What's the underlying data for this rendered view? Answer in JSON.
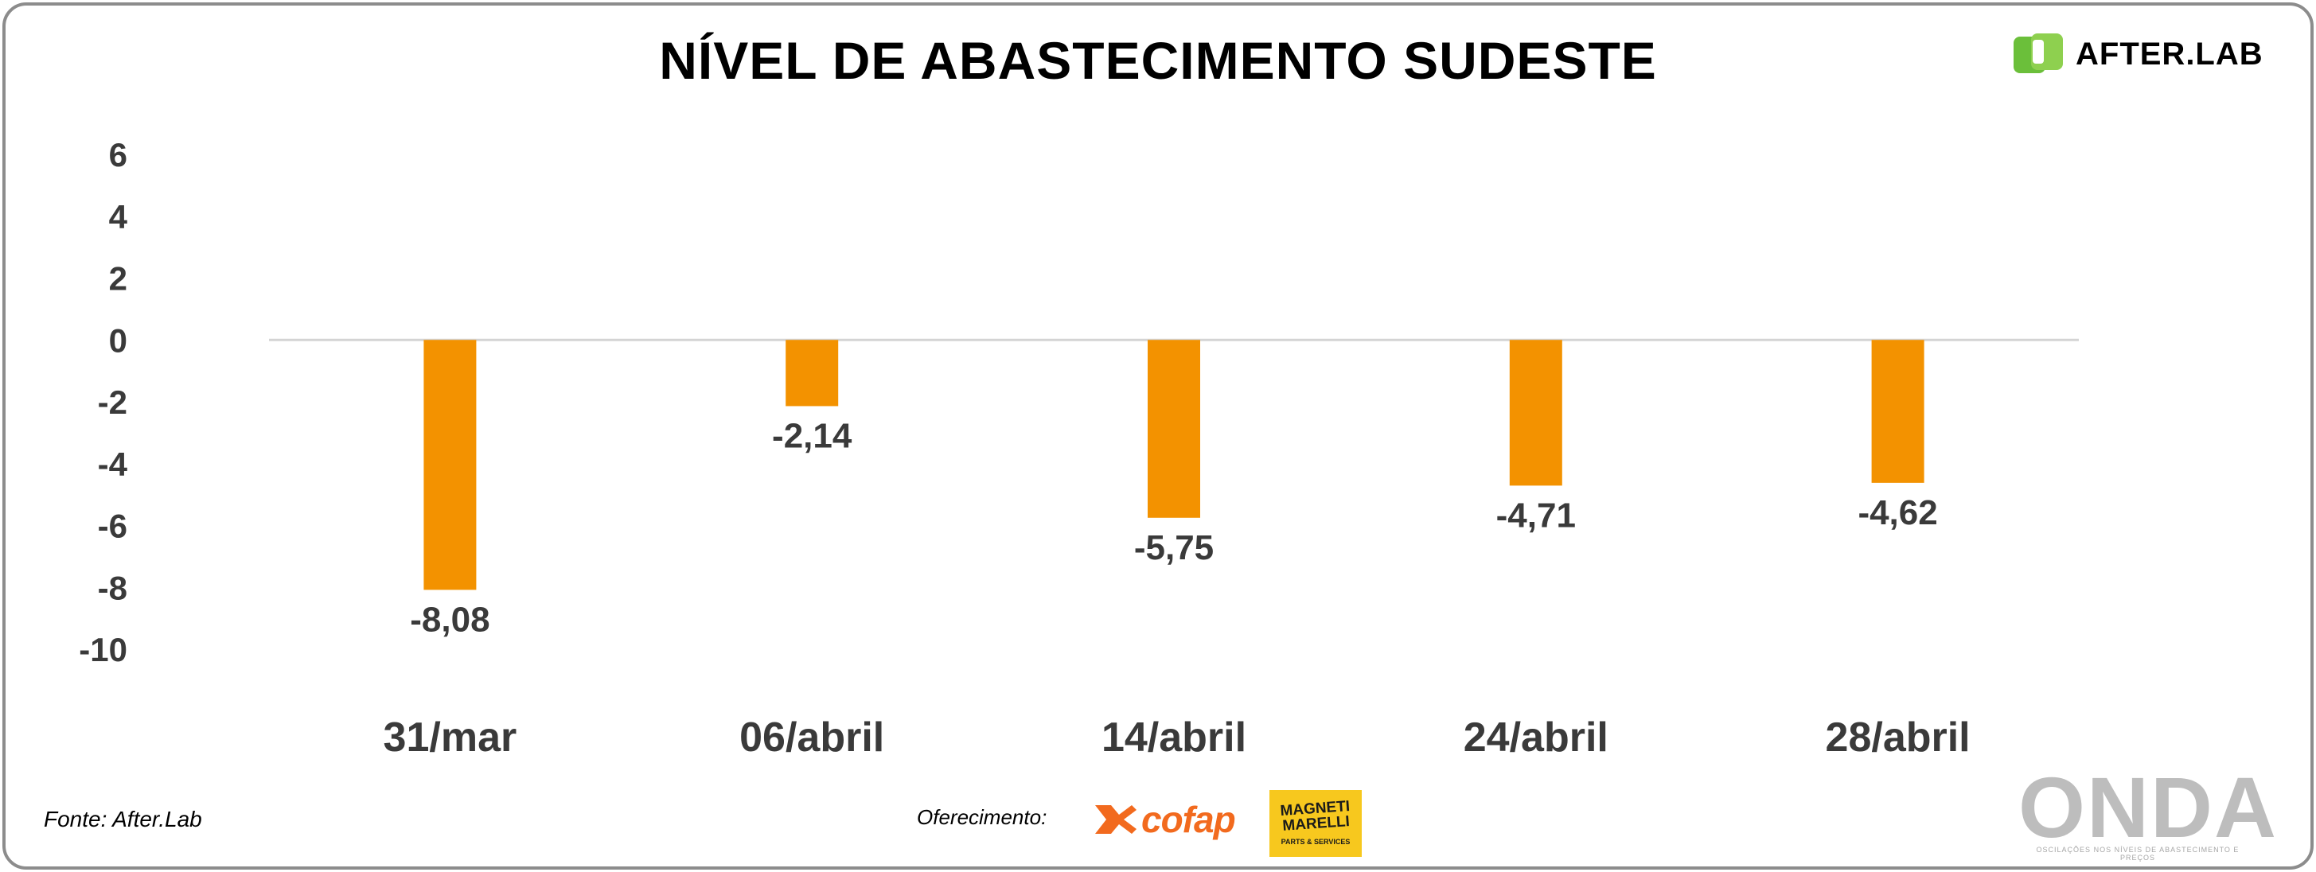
{
  "chart_data": {
    "type": "bar",
    "title": "NÍVEL DE ABASTECIMENTO SUDESTE",
    "categories": [
      "31/mar",
      "06/abril",
      "14/abril",
      "24/abril",
      "28/abril"
    ],
    "values": [
      -8.08,
      -2.14,
      -5.75,
      -4.71,
      -4.62
    ],
    "value_labels": [
      "-8,08",
      "-2,14",
      "-5,75",
      "-4,71",
      "-4,62"
    ],
    "yticks": [
      6,
      4,
      2,
      0,
      -2,
      -4,
      -6,
      -8,
      -10
    ],
    "ylim": [
      -10,
      6
    ],
    "xlabel": "",
    "ylabel": "",
    "bar_color": "#f39200",
    "grid": false,
    "legend": "none"
  },
  "brand": {
    "name": "AFTER.LAB",
    "icon": "afterlab-logo-icon",
    "icon_color": "#6bbf3a"
  },
  "footer": {
    "source": "Fonte: After.Lab",
    "sponsor_label": "Oferecimento:",
    "sponsors": [
      {
        "name": "cofap",
        "icon": "cofap-logo-icon",
        "color": "#f26a1e"
      },
      {
        "name": "MAGNETI MARELLI",
        "sub": "PARTS & SERVICES",
        "color": "#f7c81e"
      }
    ],
    "watermark": "ONDA",
    "watermark_sub": "OSCILAÇÕES NOS NÍVEIS DE ABASTECIMENTO E PREÇOS"
  }
}
